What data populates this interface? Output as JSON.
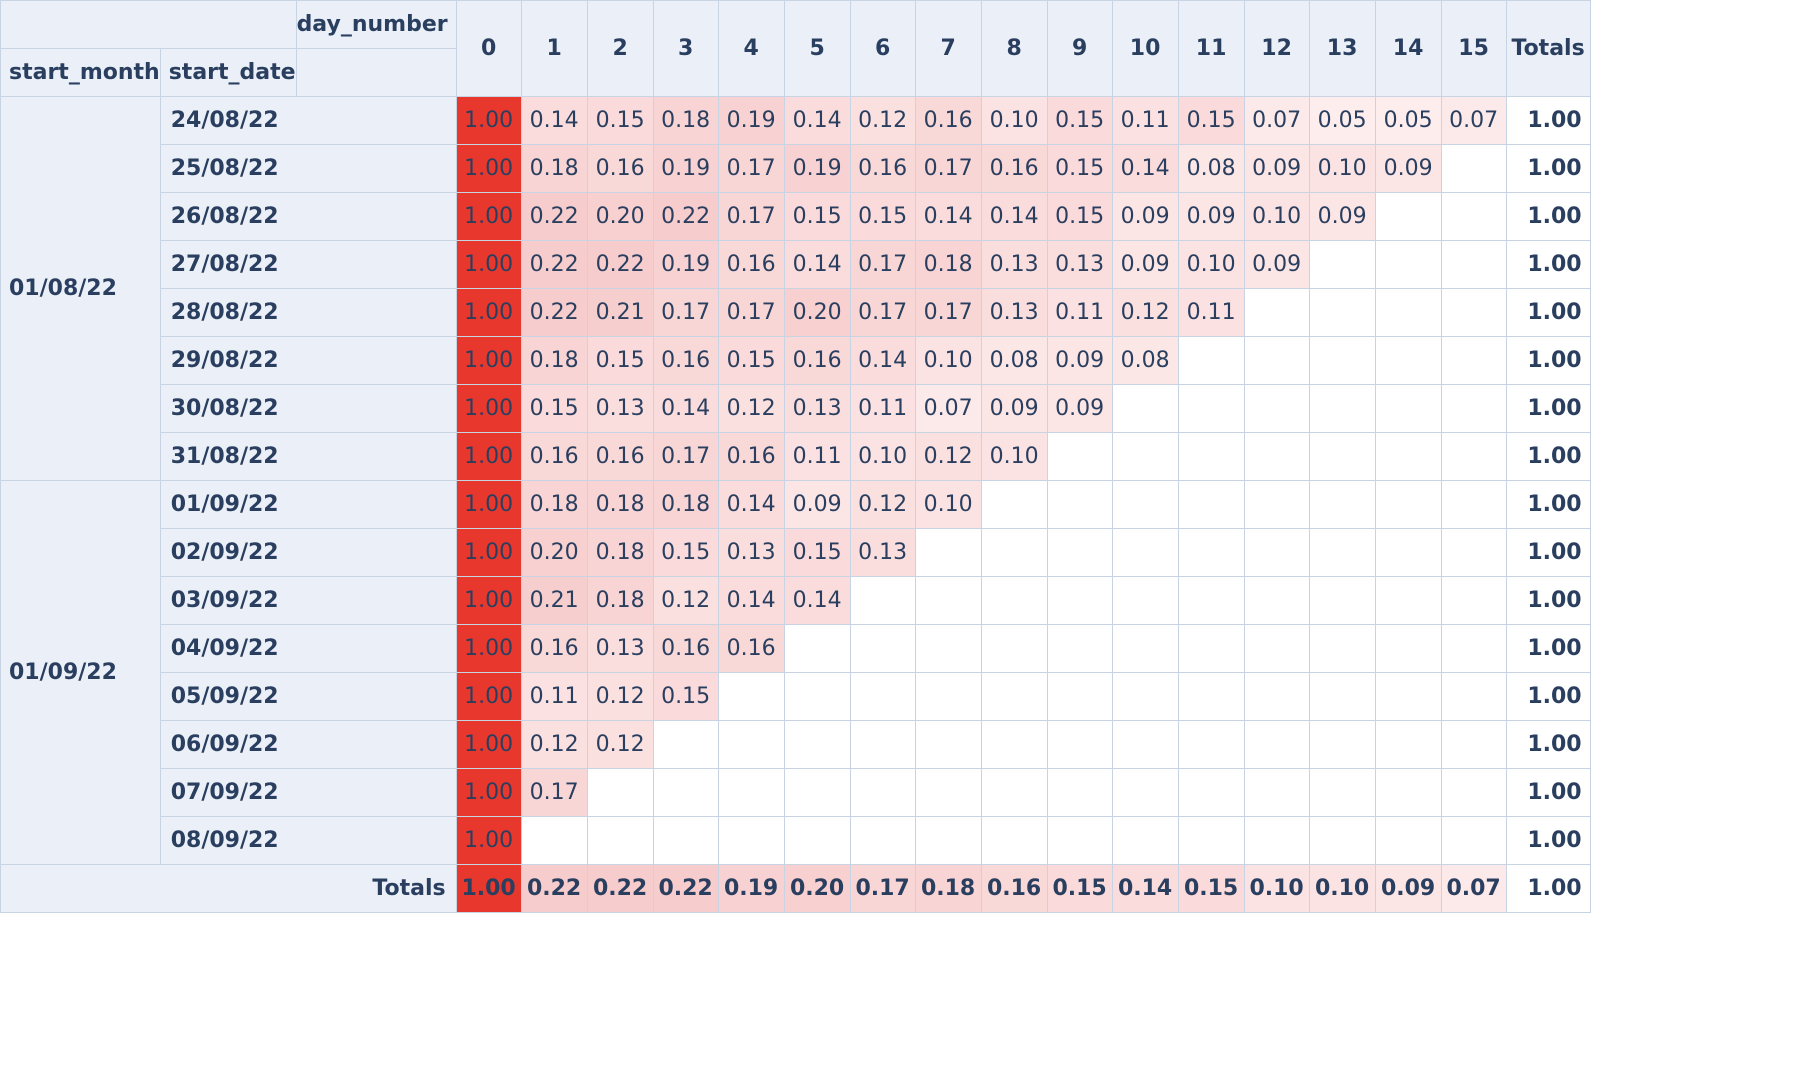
{
  "table": {
    "headers": {
      "row_axis_1": "start_month",
      "row_axis_2": "start_date",
      "column_axis": "day_number",
      "columns": [
        "0",
        "1",
        "2",
        "3",
        "4",
        "5",
        "6",
        "7",
        "8",
        "9",
        "10",
        "11",
        "12",
        "13",
        "14",
        "15"
      ],
      "totals": "Totals"
    },
    "colors": {
      "accent": "#e8382e",
      "header_bg": "#ebf0f8",
      "border": "#c8d4e3",
      "text": "#2a3f5f"
    },
    "groups": [
      {
        "month": "01/08/22",
        "rows": [
          {
            "date": "24/08/22",
            "values": [
              "1.00",
              "0.14",
              "0.15",
              "0.18",
              "0.19",
              "0.14",
              "0.12",
              "0.16",
              "0.10",
              "0.15",
              "0.11",
              "0.15",
              "0.07",
              "0.05",
              "0.05",
              "0.07"
            ],
            "total": "1.00"
          },
          {
            "date": "25/08/22",
            "values": [
              "1.00",
              "0.18",
              "0.16",
              "0.19",
              "0.17",
              "0.19",
              "0.16",
              "0.17",
              "0.16",
              "0.15",
              "0.14",
              "0.08",
              "0.09",
              "0.10",
              "0.09"
            ],
            "total": "1.00"
          },
          {
            "date": "26/08/22",
            "values": [
              "1.00",
              "0.22",
              "0.20",
              "0.22",
              "0.17",
              "0.15",
              "0.15",
              "0.14",
              "0.14",
              "0.15",
              "0.09",
              "0.09",
              "0.10",
              "0.09"
            ],
            "total": "1.00"
          },
          {
            "date": "27/08/22",
            "values": [
              "1.00",
              "0.22",
              "0.22",
              "0.19",
              "0.16",
              "0.14",
              "0.17",
              "0.18",
              "0.13",
              "0.13",
              "0.09",
              "0.10",
              "0.09"
            ],
            "total": "1.00"
          },
          {
            "date": "28/08/22",
            "values": [
              "1.00",
              "0.22",
              "0.21",
              "0.17",
              "0.17",
              "0.20",
              "0.17",
              "0.17",
              "0.13",
              "0.11",
              "0.12",
              "0.11"
            ],
            "total": "1.00"
          },
          {
            "date": "29/08/22",
            "values": [
              "1.00",
              "0.18",
              "0.15",
              "0.16",
              "0.15",
              "0.16",
              "0.14",
              "0.10",
              "0.08",
              "0.09",
              "0.08"
            ],
            "total": "1.00"
          },
          {
            "date": "30/08/22",
            "values": [
              "1.00",
              "0.15",
              "0.13",
              "0.14",
              "0.12",
              "0.13",
              "0.11",
              "0.07",
              "0.09",
              "0.09"
            ],
            "total": "1.00"
          },
          {
            "date": "31/08/22",
            "values": [
              "1.00",
              "0.16",
              "0.16",
              "0.17",
              "0.16",
              "0.11",
              "0.10",
              "0.12",
              "0.10"
            ],
            "total": "1.00"
          }
        ]
      },
      {
        "month": "01/09/22",
        "rows": [
          {
            "date": "01/09/22",
            "values": [
              "1.00",
              "0.18",
              "0.18",
              "0.18",
              "0.14",
              "0.09",
              "0.12",
              "0.10"
            ],
            "total": "1.00"
          },
          {
            "date": "02/09/22",
            "values": [
              "1.00",
              "0.20",
              "0.18",
              "0.15",
              "0.13",
              "0.15",
              "0.13"
            ],
            "total": "1.00"
          },
          {
            "date": "03/09/22",
            "values": [
              "1.00",
              "0.21",
              "0.18",
              "0.12",
              "0.14",
              "0.14"
            ],
            "total": "1.00"
          },
          {
            "date": "04/09/22",
            "values": [
              "1.00",
              "0.16",
              "0.13",
              "0.16",
              "0.16"
            ],
            "total": "1.00"
          },
          {
            "date": "05/09/22",
            "values": [
              "1.00",
              "0.11",
              "0.12",
              "0.15"
            ],
            "total": "1.00"
          },
          {
            "date": "06/09/22",
            "values": [
              "1.00",
              "0.12",
              "0.12"
            ],
            "total": "1.00"
          },
          {
            "date": "07/09/22",
            "values": [
              "1.00",
              "0.17"
            ],
            "total": "1.00"
          },
          {
            "date": "08/09/22",
            "values": [
              "1.00"
            ],
            "total": "1.00"
          }
        ]
      }
    ],
    "totals_row": {
      "label": "Totals",
      "values": [
        "1.00",
        "0.22",
        "0.22",
        "0.22",
        "0.19",
        "0.20",
        "0.17",
        "0.18",
        "0.16",
        "0.15",
        "0.14",
        "0.15",
        "0.10",
        "0.10",
        "0.09",
        "0.07"
      ],
      "total": "1.00"
    }
  }
}
